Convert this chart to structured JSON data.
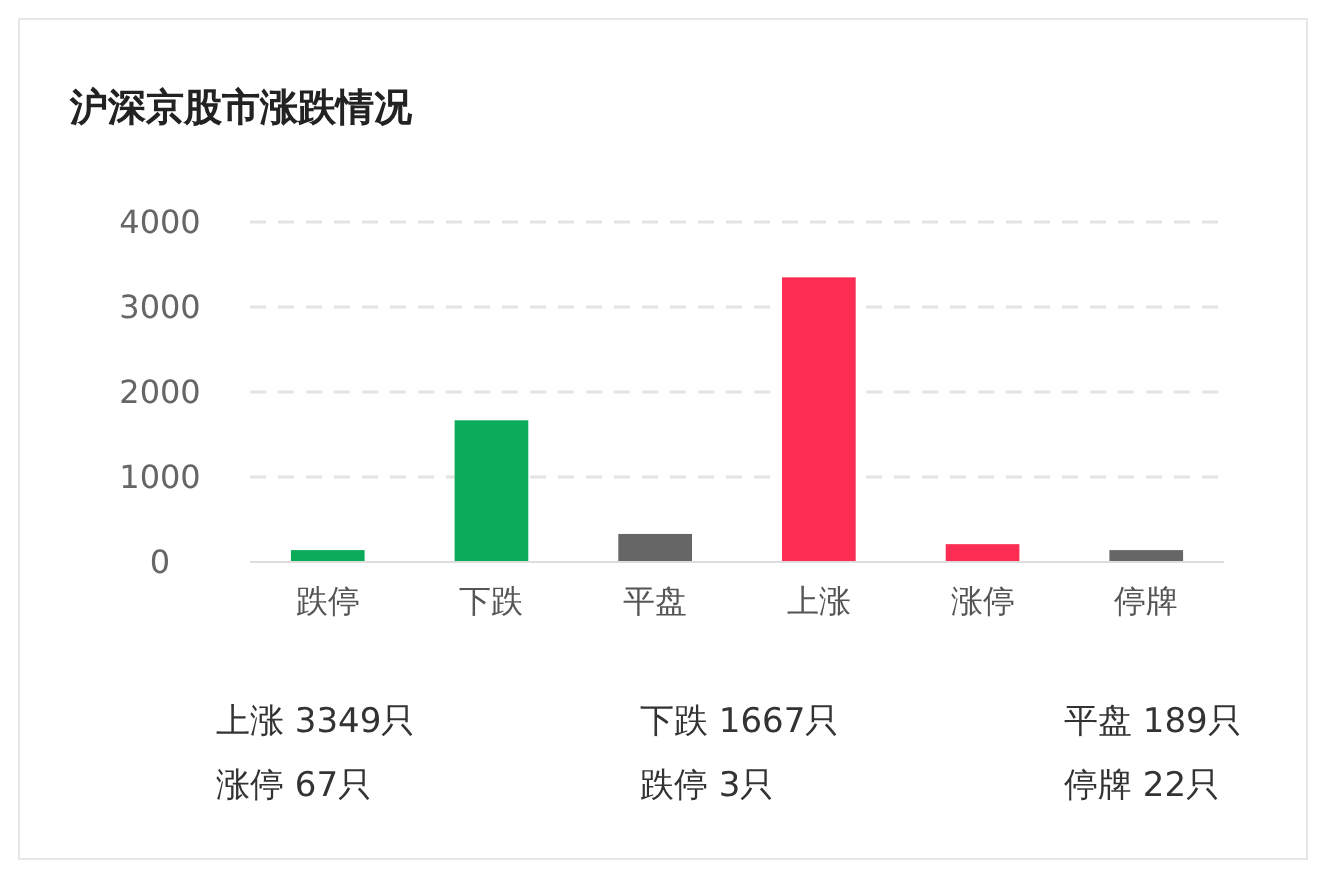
{
  "chart_data": {
    "type": "bar",
    "title": "沪深京股市涨跌情况",
    "categories": [
      "跌停",
      "下跌",
      "平盘",
      "上涨",
      "涨停",
      "停牌"
    ],
    "values": [
      140,
      1667,
      330,
      3349,
      210,
      140
    ],
    "colors": [
      "#0aab5b",
      "#0aab5b",
      "#666666",
      "#fc2d52",
      "#fc2d52",
      "#666666"
    ],
    "ylim": [
      0,
      4000
    ],
    "yticks": [
      0,
      1000,
      2000,
      3000,
      4000
    ],
    "grid": "y",
    "annotations": [
      "上涨 3349只",
      "下跌 1667只",
      "平盘 189只",
      "涨停 67只",
      "跌停 3只",
      "停牌 22只"
    ]
  }
}
